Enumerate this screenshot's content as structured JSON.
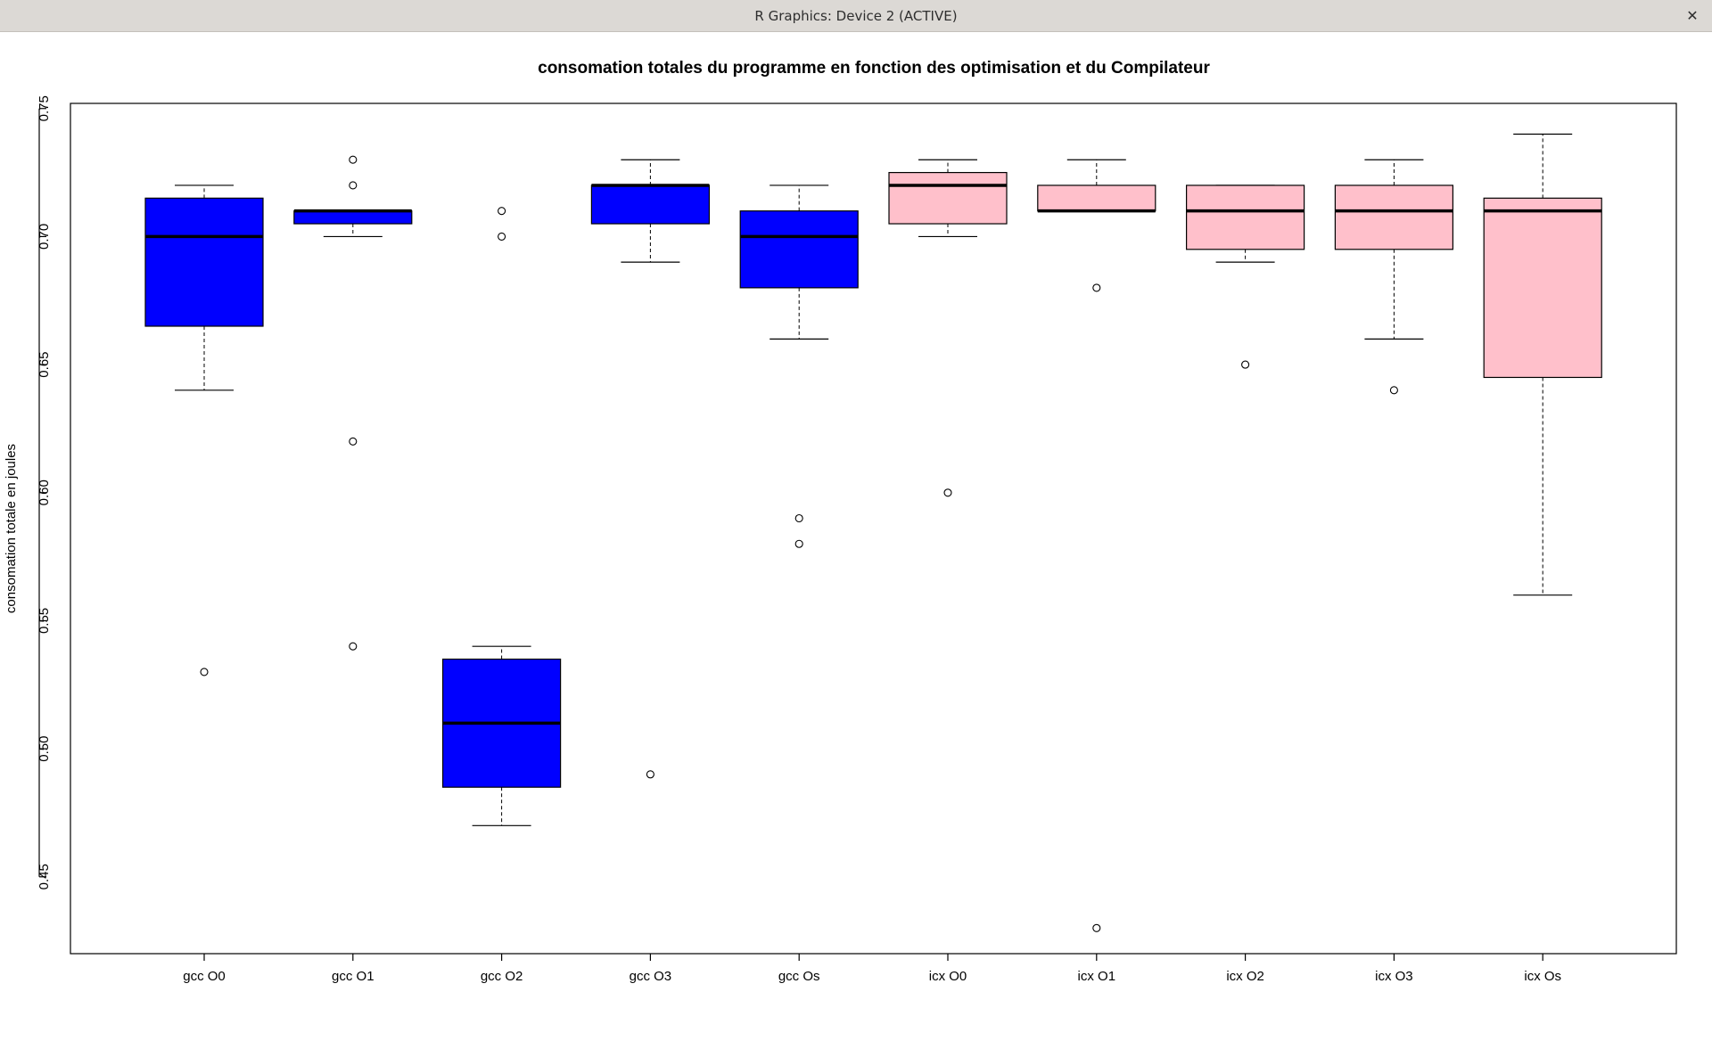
{
  "window": {
    "title": "R Graphics: Device 2 (ACTIVE)",
    "close_icon": "close-icon",
    "close_glyph": "✕"
  },
  "chart_data": {
    "type": "boxplot",
    "title": "consomation totales du programme en fonction des optimisation et du Compilateur",
    "xlabel": "",
    "ylabel": "consomation totale en joules",
    "ylim": [
      0.42,
      0.752
    ],
    "yticks": [
      0.45,
      0.5,
      0.55,
      0.6,
      0.65,
      0.7,
      0.75
    ],
    "ytick_labels": [
      "0.45",
      "0.50",
      "0.55",
      "0.60",
      "0.65",
      "0.70",
      "0.75"
    ],
    "grid": false,
    "legend": "none",
    "colors": {
      "gcc": "#0000ff",
      "icx": "#ffc0cb"
    },
    "categories": [
      "gcc O0",
      "gcc O1",
      "gcc O2",
      "gcc O3",
      "gcc Os",
      "icx O0",
      "icx O1",
      "icx O2",
      "icx O3",
      "icx Os"
    ],
    "boxes": [
      {
        "label": "gcc O0",
        "group": "gcc",
        "whisker_low": 0.64,
        "q1": 0.665,
        "median": 0.7,
        "q3": 0.715,
        "whisker_high": 0.72,
        "outliers": [
          0.53
        ]
      },
      {
        "label": "gcc O1",
        "group": "gcc",
        "whisker_low": 0.7,
        "q1": 0.705,
        "median": 0.71,
        "q3": 0.71,
        "whisker_high": 0.71,
        "outliers": [
          0.73,
          0.72,
          0.62,
          0.54
        ]
      },
      {
        "label": "gcc O2",
        "group": "gcc",
        "whisker_low": 0.47,
        "q1": 0.485,
        "median": 0.51,
        "q3": 0.535,
        "whisker_high": 0.54,
        "outliers": [
          0.71,
          0.7
        ]
      },
      {
        "label": "gcc O3",
        "group": "gcc",
        "whisker_low": 0.69,
        "q1": 0.705,
        "median": 0.72,
        "q3": 0.72,
        "whisker_high": 0.73,
        "outliers": [
          0.49
        ]
      },
      {
        "label": "gcc Os",
        "group": "gcc",
        "whisker_low": 0.66,
        "q1": 0.68,
        "median": 0.7,
        "q3": 0.71,
        "whisker_high": 0.72,
        "outliers": [
          0.59,
          0.58
        ]
      },
      {
        "label": "icx O0",
        "group": "icx",
        "whisker_low": 0.7,
        "q1": 0.705,
        "median": 0.72,
        "q3": 0.725,
        "whisker_high": 0.73,
        "outliers": [
          0.6
        ]
      },
      {
        "label": "icx O1",
        "group": "icx",
        "whisker_low": 0.71,
        "q1": 0.71,
        "median": 0.71,
        "q3": 0.72,
        "whisker_high": 0.73,
        "outliers": [
          0.68,
          0.43
        ]
      },
      {
        "label": "icx O2",
        "group": "icx",
        "whisker_low": 0.69,
        "q1": 0.695,
        "median": 0.71,
        "q3": 0.72,
        "whisker_high": 0.72,
        "outliers": [
          0.65
        ]
      },
      {
        "label": "icx O3",
        "group": "icx",
        "whisker_low": 0.66,
        "q1": 0.695,
        "median": 0.71,
        "q3": 0.72,
        "whisker_high": 0.73,
        "outliers": [
          0.64
        ]
      },
      {
        "label": "icx Os",
        "group": "icx",
        "whisker_low": 0.56,
        "q1": 0.645,
        "median": 0.71,
        "q3": 0.715,
        "whisker_high": 0.74,
        "outliers": []
      }
    ]
  }
}
